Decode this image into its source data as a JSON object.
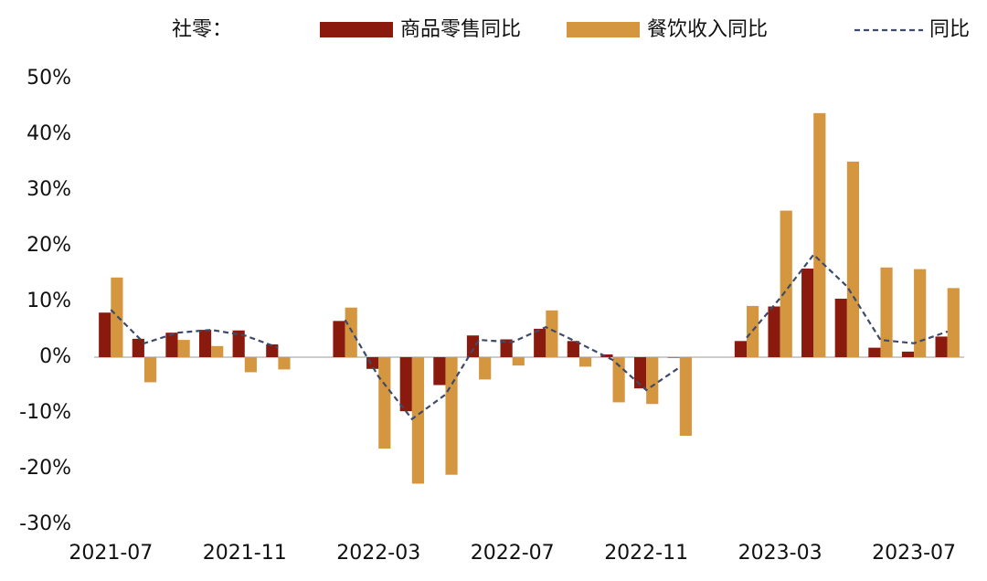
{
  "chart_data": {
    "type": "bar_line",
    "legend_title": "社零：",
    "categories": [
      "2021-07",
      null,
      null,
      null,
      "2021-11",
      null,
      null,
      null,
      "2022-03",
      null,
      null,
      null,
      "2022-07",
      null,
      null,
      null,
      "2022-11",
      null,
      null,
      null,
      "2023-03",
      null,
      null,
      null,
      "2023-07",
      null
    ],
    "series": [
      {
        "name": "商品零售同比",
        "kind": "bar",
        "color": "#8b1a0e",
        "values": [
          8.0,
          3.3,
          4.4,
          4.9,
          4.8,
          2.3,
          null,
          6.5,
          -2.1,
          -9.7,
          -5.0,
          3.9,
          3.2,
          5.1,
          2.9,
          0.5,
          -5.6,
          -0.1,
          null,
          2.9,
          9.1,
          15.9,
          10.5,
          1.7,
          1.0,
          3.7
        ]
      },
      {
        "name": "餐饮收入同比",
        "kind": "bar",
        "color": "#d4973f",
        "values": [
          14.3,
          -4.5,
          3.1,
          2.0,
          -2.7,
          -2.2,
          null,
          8.9,
          -16.4,
          -22.7,
          -21.1,
          -4.0,
          -1.5,
          8.4,
          -1.7,
          -8.1,
          -8.4,
          -14.1,
          null,
          9.2,
          26.3,
          43.8,
          35.1,
          16.1,
          15.8,
          12.4
        ]
      },
      {
        "name": "同比",
        "kind": "line",
        "color": "#3d4a6b",
        "values": [
          8.5,
          2.5,
          4.4,
          4.9,
          3.9,
          1.7,
          null,
          6.7,
          -3.5,
          -11.1,
          -6.7,
          3.1,
          2.7,
          5.4,
          2.5,
          -0.5,
          -5.9,
          -1.8,
          null,
          3.5,
          10.6,
          18.4,
          12.7,
          3.1,
          2.5,
          4.6
        ]
      }
    ],
    "ylim": [
      -30,
      50
    ],
    "yticks": [
      {
        "value": -30,
        "label": "-30%"
      },
      {
        "value": -20,
        "label": "-20%"
      },
      {
        "value": -10,
        "label": "-10%"
      },
      {
        "value": 0,
        "label": "0%"
      },
      {
        "value": 10,
        "label": "10%"
      },
      {
        "value": 20,
        "label": "20%"
      },
      {
        "value": 30,
        "label": "30%"
      },
      {
        "value": 40,
        "label": "40%"
      },
      {
        "value": 50,
        "label": "50%"
      }
    ],
    "grid": false
  }
}
